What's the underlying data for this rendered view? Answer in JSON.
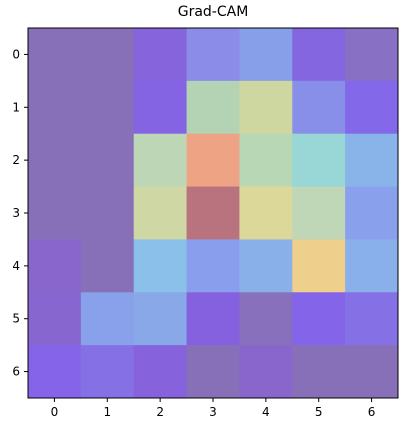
{
  "chart_data": {
    "type": "heatmap",
    "title": "Grad-CAM",
    "x_ticks": [
      "0",
      "1",
      "2",
      "3",
      "4",
      "5",
      "6"
    ],
    "y_ticks": [
      "0",
      "1",
      "2",
      "3",
      "4",
      "5",
      "6"
    ],
    "xlim": [
      -0.5,
      6.5
    ],
    "ylim": [
      6.5,
      -0.5
    ],
    "cells": [
      [
        "#8870b8",
        "#8870b8",
        "#8564dc",
        "#8a8ce8",
        "#879ee9",
        "#8466e0",
        "#8870c4"
      ],
      [
        "#8870b8",
        "#8870b8",
        "#8464e2",
        "#b4d3b4",
        "#cfd7a0",
        "#888fe9",
        "#8468ea"
      ],
      [
        "#8870b8",
        "#8870b8",
        "#bdd7b6",
        "#eda384",
        "#b8d7b4",
        "#98d7d5",
        "#89b4ea"
      ],
      [
        "#8870b8",
        "#8870b8",
        "#cfd7a4",
        "#b8737e",
        "#dcd899",
        "#bfd7b6",
        "#89a0ec"
      ],
      [
        "#8866cc",
        "#8870b8",
        "#8ac0ea",
        "#899eec",
        "#8ab0ea",
        "#eed08c",
        "#89b0ea"
      ],
      [
        "#8866d0",
        "#89a0ea",
        "#89a8e8",
        "#8561e0",
        "#8870bc",
        "#8464e8",
        "#8670e6"
      ],
      [
        "#8664ea",
        "#8670e6",
        "#8662dc",
        "#8870b8",
        "#8866cc",
        "#8870b8",
        "#8870b8"
      ]
    ]
  }
}
